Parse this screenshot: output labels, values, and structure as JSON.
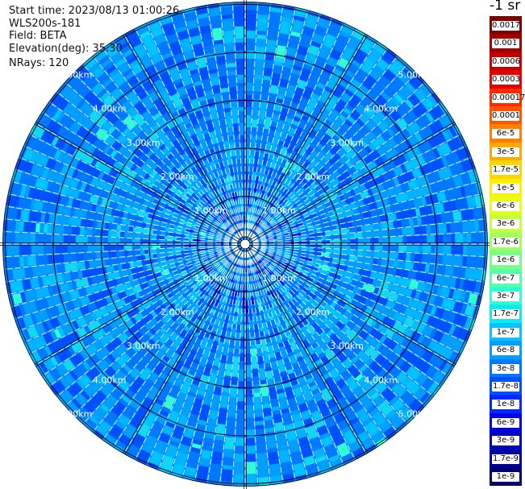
{
  "info": {
    "start_time_label": "Start time",
    "start_time": "2023/08/13 01:00:26",
    "instrument": "WLS200s-181",
    "field_label": "Field",
    "field": "BETA",
    "elevation_label": "Elevation(deg)",
    "elevation": "35.30",
    "nrays_label": "NRays",
    "nrays": "120"
  },
  "colorbar": {
    "title": "-1 sr",
    "ticks": [
      "0.0017",
      "0.001",
      "0.0006",
      "0.0003",
      "0.00017",
      "0.0001",
      "6e-5",
      "3e-5",
      "1.7e-5",
      "1e-5",
      "6e-6",
      "3e-6",
      "1.7e-6",
      "1e-6",
      "6e-7",
      "3e-7",
      "1.7e-7",
      "1e-7",
      "6e-8",
      "3e-8",
      "1.7e-8",
      "1e-8",
      "6e-9",
      "3e-9",
      "1.7e-9",
      "1e-9"
    ],
    "colors": [
      "#7a0000",
      "#9e0000",
      "#c40000",
      "#e80000",
      "#ff2a00",
      "#ff5500",
      "#ff8000",
      "#ffaa00",
      "#ffd400",
      "#fff000",
      "#e6ff1a",
      "#c2ff3d",
      "#9eff61",
      "#7aff85",
      "#55ffaa",
      "#30ffcf",
      "#12e8ee",
      "#00c4ff",
      "#009eff",
      "#0078ff",
      "#0050ff",
      "#0028ff",
      "#0000ee",
      "#0000c4",
      "#00009a",
      "#000070"
    ]
  },
  "chart_data": {
    "type": "heatmap",
    "projection": "polar (PPI scan)",
    "field": "BETA",
    "elevation_deg": 35.3,
    "n_rays": 120,
    "range_rings": [
      {
        "range_km": 1.0,
        "label": "1.00km"
      },
      {
        "range_km": 2.0,
        "label": "2.00km"
      },
      {
        "range_km": 3.0,
        "label": "3.00km"
      },
      {
        "range_km": 4.0,
        "label": "4.00km"
      },
      {
        "range_km": 5.0,
        "label": "5.00km"
      }
    ],
    "max_range_km": 5.05,
    "azimuth_lines_deg": [
      0,
      30,
      60,
      90,
      120,
      150,
      180,
      210,
      240,
      270,
      300,
      330
    ],
    "colorbar_scale": "log",
    "colorbar_min": "1e-9",
    "colorbar_max": "0.0017",
    "dominant_value_range": [
      "6e-9",
      "1e-7"
    ],
    "grid": true
  }
}
